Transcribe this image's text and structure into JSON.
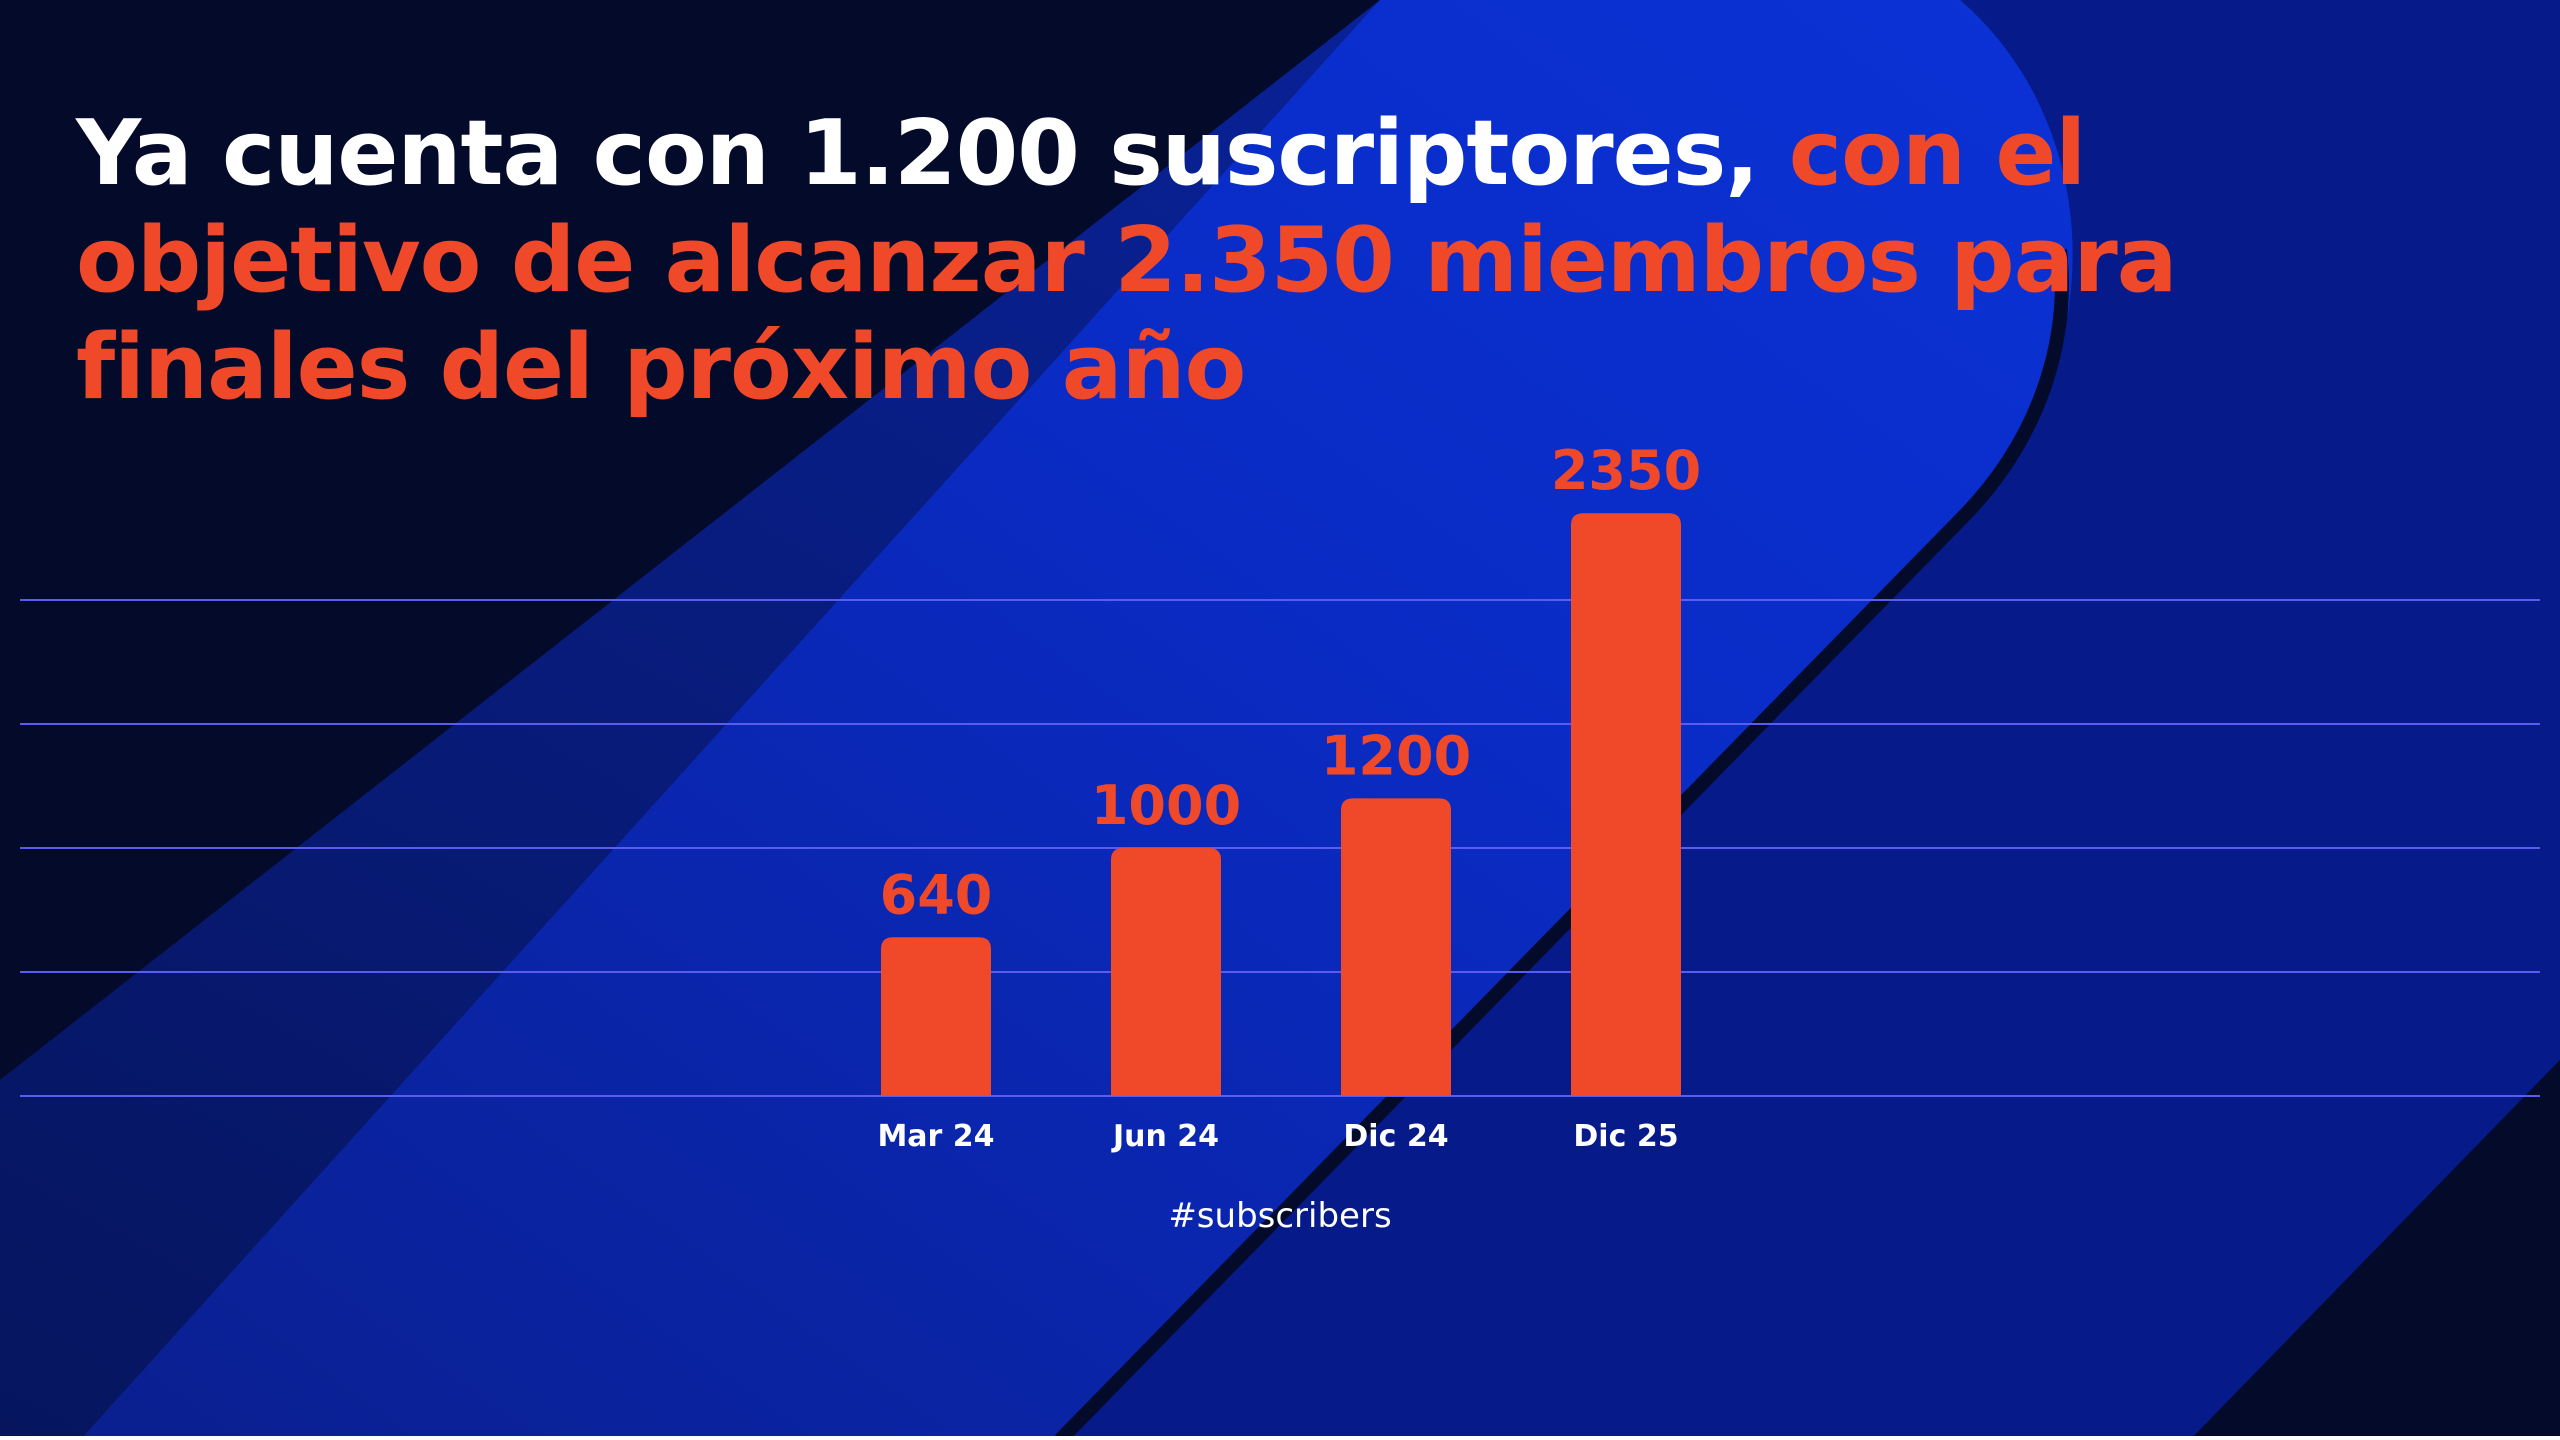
{
  "title": {
    "white": "Ya cuenta con 1.200 suscriptores,",
    "accent": "con el objetivo de alcanzar 2.350 miembros para finales del próximo año"
  },
  "footer": {
    "hashtag": "#subscribers"
  },
  "colors": {
    "background": "#030a2a",
    "accent": "#f0492a",
    "stripe": "#0a2bc4",
    "gridline": "#5a5cf0",
    "text": "#ffffff"
  },
  "chart_data": {
    "type": "bar",
    "categories": [
      "Mar 24",
      "Jun 24",
      "Dic 24",
      "Dic 25"
    ],
    "values": [
      640,
      1000,
      1200,
      2350
    ],
    "data_labels": [
      "640",
      "1000",
      "1200",
      "2350"
    ],
    "ylim": [
      0,
      2000
    ],
    "grid": true,
    "bar_color": "#f0492a"
  }
}
